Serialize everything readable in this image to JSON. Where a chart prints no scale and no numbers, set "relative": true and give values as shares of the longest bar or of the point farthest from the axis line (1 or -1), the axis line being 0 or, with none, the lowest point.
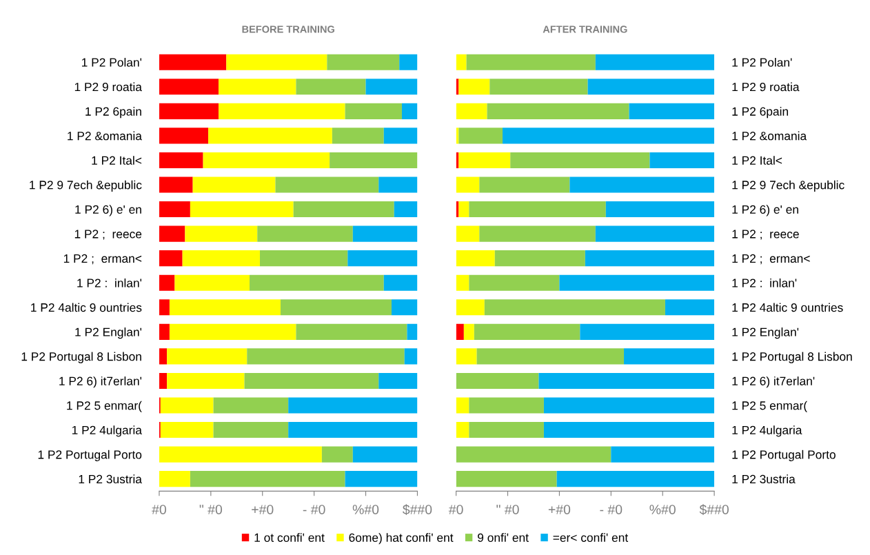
{
  "chart_data": [
    {
      "type": "bar",
      "orientation": "horizontal",
      "stacked": true,
      "relative": true,
      "title": "BEFORE TRAINING",
      "legend": "bottom",
      "categories": [
        "1 P2 Polan'",
        "1 P2 9 roatia",
        "1 P2 6pain",
        "1 P2 &omania",
        "1 P2 Ital<",
        "1 P2 9 7ech &epublic",
        "1 P2 6) e' en",
        "1 P2 ;  reece",
        "1 P2 ;  erman<",
        "1 P2 :  inlan'",
        "1 P2 4altic 9 ountries",
        "1 P2 Englan'",
        "1 P2 Portugal 8 Lisbon",
        "1 P2 6) it7erlan'",
        "1 P2 5 enmar(",
        "1 P2 4ulgaria",
        "1 P2 Portugal Porto",
        "1 P2 3ustria"
      ],
      "annotations": [
        "#0",
        "\" #0",
        "+#0",
        "- #0",
        "%#0",
        "$##0"
      ],
      "series": [
        {
          "name": "1 ot confi' ent",
          "color": "#ff0000",
          "values": [
            0.26,
            0.23,
            0.23,
            0.19,
            0.17,
            0.13,
            0.12,
            0.1,
            0.09,
            0.06,
            0.04,
            0.04,
            0.03,
            0.03,
            0.005,
            0.005,
            0,
            0
          ]
        },
        {
          "name": "6ome) hat confi' ent",
          "color": "#ffff00",
          "values": [
            0.39,
            0.3,
            0.49,
            0.48,
            0.49,
            0.32,
            0.4,
            0.28,
            0.3,
            0.29,
            0.43,
            0.49,
            0.31,
            0.3,
            0.205,
            0.205,
            0.63,
            0.12
          ]
        },
        {
          "name": "9 onfi' ent",
          "color": "#92d050",
          "values": [
            0.28,
            0.27,
            0.22,
            0.2,
            0.34,
            0.4,
            0.39,
            0.37,
            0.34,
            0.52,
            0.43,
            0.43,
            0.61,
            0.52,
            0.29,
            0.29,
            0.12,
            0.6
          ]
        },
        {
          "name": "=er< confi' ent",
          "color": "#00b0f0",
          "values": [
            0.07,
            0.2,
            0.06,
            0.13,
            0,
            0.15,
            0.09,
            0.25,
            0.27,
            0.13,
            0.1,
            0.04,
            0.05,
            0.15,
            0.5,
            0.5,
            0.25,
            0.28
          ]
        }
      ]
    },
    {
      "type": "bar",
      "orientation": "horizontal",
      "stacked": true,
      "relative": true,
      "title": "AFTER TRAINING",
      "categories": [
        "1 P2 Polan'",
        "1 P2 9 roatia",
        "1 P2 6pain",
        "1 P2 &omania",
        "1 P2 Ital<",
        "1 P2 9 7ech &epublic",
        "1 P2 6) e' en",
        "1 P2 ;  reece",
        "1 P2 ;  erman<",
        "1 P2 :  inlan'",
        "1 P2 4altic 9 ountries",
        "1 P2 Englan'",
        "1 P2 Portugal 8 Lisbon",
        "1 P2 6) it7erlan'",
        "1 P2 5 enmar(",
        "1 P2 4ulgaria",
        "1 P2 Portugal Porto",
        "1 P2 3ustria"
      ],
      "annotations": [
        "#0",
        "\" #0",
        "+#0",
        "- #0",
        "%#0",
        "$##0"
      ],
      "series": [
        {
          "color": "#ff0000",
          "values": [
            0,
            0.01,
            0,
            0,
            0.01,
            0,
            0.01,
            0,
            0,
            0,
            0,
            0.03,
            0,
            0,
            0,
            0,
            0,
            0
          ]
        },
        {
          "color": "#ffff00",
          "values": [
            0.04,
            0.12,
            0.12,
            0.01,
            0.2,
            0.09,
            0.04,
            0.09,
            0.15,
            0.05,
            0.11,
            0.04,
            0.08,
            0,
            0.05,
            0.05,
            0,
            0
          ]
        },
        {
          "color": "#92d050",
          "values": [
            0.5,
            0.38,
            0.55,
            0.17,
            0.54,
            0.35,
            0.53,
            0.45,
            0.35,
            0.35,
            0.7,
            0.41,
            0.57,
            0.32,
            0.29,
            0.29,
            0.6,
            0.39
          ]
        },
        {
          "color": "#00b0f0",
          "values": [
            0.46,
            0.49,
            0.33,
            0.82,
            0.25,
            0.56,
            0.42,
            0.46,
            0.5,
            0.6,
            0.19,
            0.52,
            0.35,
            0.68,
            0.66,
            0.66,
            0.4,
            0.61
          ]
        }
      ]
    }
  ]
}
